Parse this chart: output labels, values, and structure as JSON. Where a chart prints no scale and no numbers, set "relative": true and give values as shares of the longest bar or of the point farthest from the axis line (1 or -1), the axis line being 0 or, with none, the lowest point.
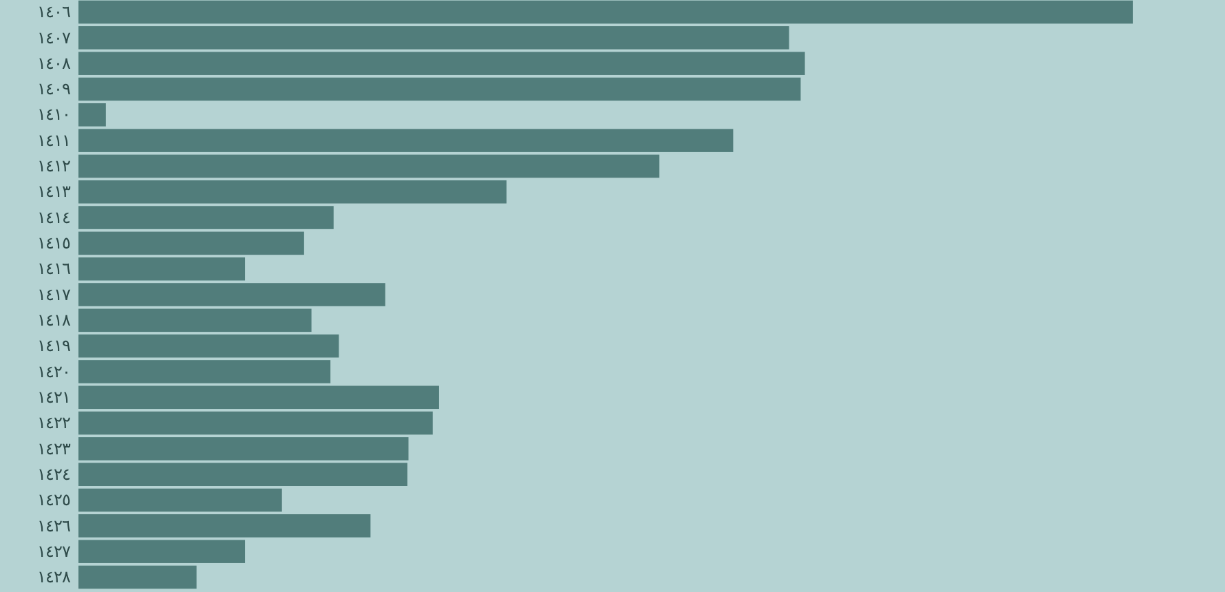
{
  "chart_data": {
    "type": "bar",
    "orientation": "horizontal",
    "relative": true,
    "color": "#517d7b",
    "categories": [
      "١٤٠٦",
      "١٤٠٧",
      "١٤٠٨",
      "١٤٠٩",
      "١٤١٠",
      "١٤١١",
      "١٤١٢",
      "١٤١٣",
      "١٤١٤",
      "١٤١٥",
      "١٤١٦",
      "١٤١٧",
      "١٤١٨",
      "١٤١٩",
      "١٤٢٠",
      "١٤٢١",
      "١٤٢٢",
      "١٤٢٣",
      "١٤٢٤",
      "١٤٢٥",
      "١٤٢٦",
      "١٤٢٧",
      "١٤٢٨"
    ],
    "values": [
      1,
      0.674,
      0.689,
      0.685,
      0.026,
      0.621,
      0.551,
      0.406,
      0.242,
      0.214,
      0.158,
      0.291,
      0.221,
      0.247,
      0.239,
      0.342,
      0.336,
      0.313,
      0.312,
      0.193,
      0.277,
      0.158,
      0.112
    ]
  }
}
